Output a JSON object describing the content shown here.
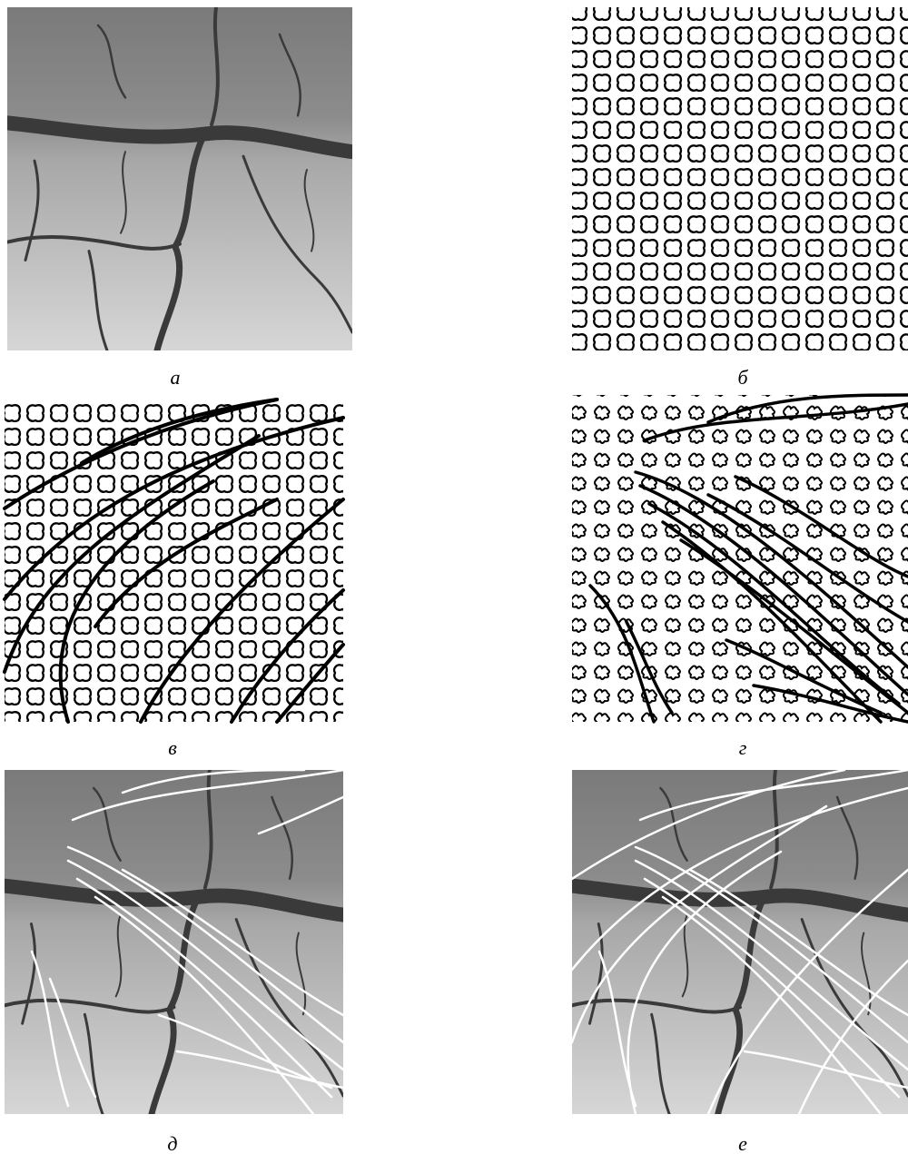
{
  "panels": [
    {
      "label": "а"
    },
    {
      "label": "б"
    },
    {
      "label": "в"
    },
    {
      "label": "г"
    },
    {
      "label": "д"
    },
    {
      "label": "е"
    }
  ]
}
